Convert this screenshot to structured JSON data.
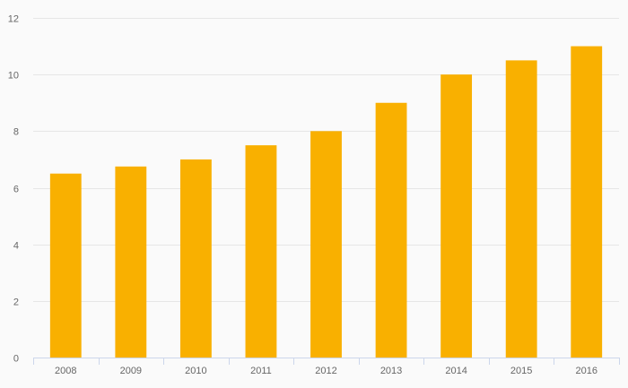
{
  "chart_data": {
    "type": "bar",
    "title": "",
    "xlabel": "",
    "ylabel": "",
    "categories": [
      "2008",
      "2009",
      "2010",
      "2011",
      "2012",
      "2013",
      "2014",
      "2015",
      "2016"
    ],
    "series": [
      {
        "values": [
          6.5,
          6.75,
          7.0,
          7.5,
          8.0,
          9.0,
          10.0,
          10.5,
          11.0
        ],
        "color": "#f9b000"
      }
    ],
    "ylim": [
      0,
      12
    ],
    "yticks": [
      0,
      2,
      4,
      6,
      8,
      10,
      12
    ],
    "grid": true,
    "legend": "none"
  },
  "colors": {
    "background": "#fafafa",
    "bar": "#f9b000",
    "grid": "#e6e6e6",
    "axis": "#ccd6eb",
    "tick_text": "#666666"
  }
}
